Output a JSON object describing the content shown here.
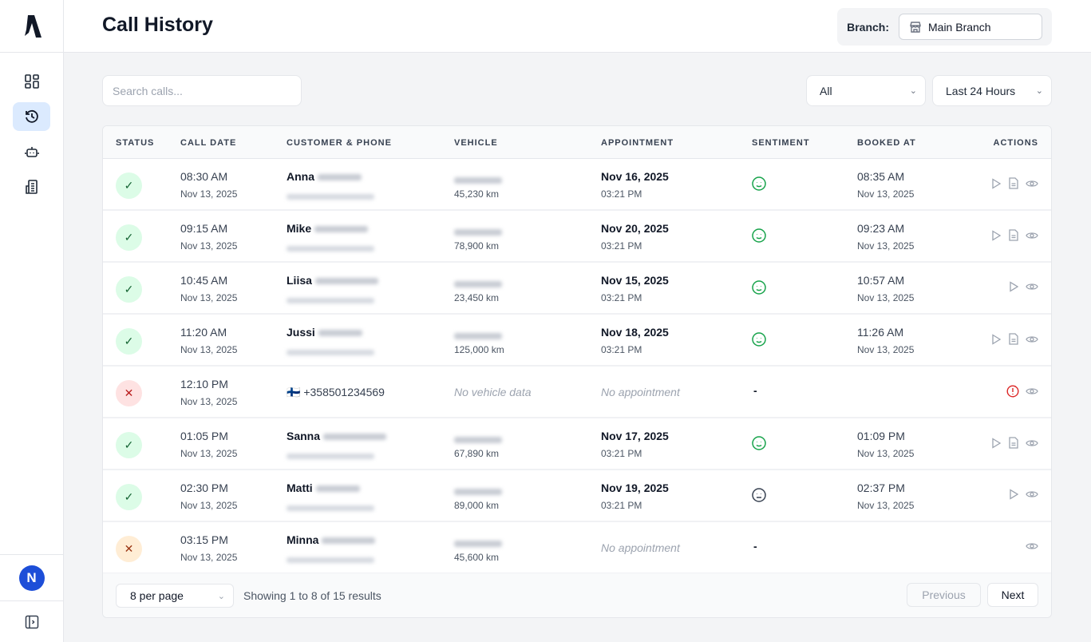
{
  "header": {
    "title": "Call History",
    "branch_label": "Branch:",
    "branch_value": "Main Branch"
  },
  "sidebar": {
    "avatar_initial": "N",
    "items": [
      {
        "name": "dashboard"
      },
      {
        "name": "call-history",
        "active": true
      },
      {
        "name": "assistant"
      },
      {
        "name": "branches"
      }
    ]
  },
  "toolbar": {
    "search_placeholder": "Search calls...",
    "status_filter": "All",
    "time_filter": "Last 24 Hours"
  },
  "table": {
    "columns": [
      "STATUS",
      "CALL DATE",
      "CUSTOMER & PHONE",
      "VEHICLE",
      "APPOINTMENT",
      "SENTIMENT",
      "BOOKED AT",
      "ACTIONS"
    ],
    "rows": [
      {
        "status": "success",
        "time": "08:30 AM",
        "date": "Nov 13, 2025",
        "name": "Anna",
        "vehicle_km": "45,230 km",
        "appt_date": "Nov 16, 2025",
        "appt_time": "03:21 PM",
        "sentiment": "positive",
        "booked_time": "08:35 AM",
        "booked_date": "Nov 13, 2025",
        "actions": [
          "play",
          "transcript",
          "view"
        ]
      },
      {
        "status": "success",
        "time": "09:15 AM",
        "date": "Nov 13, 2025",
        "name": "Mike",
        "vehicle_km": "78,900 km",
        "appt_date": "Nov 20, 2025",
        "appt_time": "03:21 PM",
        "sentiment": "positive",
        "booked_time": "09:23 AM",
        "booked_date": "Nov 13, 2025",
        "actions": [
          "play",
          "transcript",
          "view"
        ]
      },
      {
        "status": "success",
        "time": "10:45 AM",
        "date": "Nov 13, 2025",
        "name": "Liisa",
        "vehicle_km": "23,450 km",
        "appt_date": "Nov 15, 2025",
        "appt_time": "03:21 PM",
        "sentiment": "positive",
        "booked_time": "10:57 AM",
        "booked_date": "Nov 13, 2025",
        "actions": [
          "play",
          "view"
        ]
      },
      {
        "status": "success",
        "time": "11:20 AM",
        "date": "Nov 13, 2025",
        "name": "Jussi",
        "vehicle_km": "125,000 km",
        "appt_date": "Nov 18, 2025",
        "appt_time": "03:21 PM",
        "sentiment": "positive",
        "booked_time": "11:26 AM",
        "booked_date": "Nov 13, 2025",
        "actions": [
          "play",
          "transcript",
          "view"
        ]
      },
      {
        "status": "failed",
        "time": "12:10 PM",
        "date": "Nov 13, 2025",
        "phone": "🇫🇮 +358501234569",
        "vehicle_empty": "No vehicle data",
        "appt_empty": "No appointment",
        "sentiment_text": "-",
        "actions": [
          "error",
          "view"
        ]
      },
      {
        "status": "success",
        "time": "01:05 PM",
        "date": "Nov 13, 2025",
        "name": "Sanna",
        "vehicle_km": "67,890 km",
        "appt_date": "Nov 17, 2025",
        "appt_time": "03:21 PM",
        "sentiment": "positive",
        "booked_time": "01:09 PM",
        "booked_date": "Nov 13, 2025",
        "actions": [
          "play",
          "transcript",
          "view"
        ]
      },
      {
        "status": "success",
        "time": "02:30 PM",
        "date": "Nov 13, 2025",
        "name": "Matti",
        "vehicle_km": "89,000 km",
        "appt_date": "Nov 19, 2025",
        "appt_time": "03:21 PM",
        "sentiment": "neutral",
        "booked_time": "02:37 PM",
        "booked_date": "Nov 13, 2025",
        "actions": [
          "play",
          "view"
        ]
      },
      {
        "status": "incomplete",
        "time": "03:15 PM",
        "date": "Nov 13, 2025",
        "name": "Minna",
        "vehicle_km": "45,600 km",
        "appt_empty": "No appointment",
        "sentiment_text": "-",
        "actions": [
          "view"
        ]
      }
    ]
  },
  "footer": {
    "per_page": "8 per page",
    "showing": "Showing 1 to 8 of 15 results",
    "previous": "Previous",
    "next": "Next"
  },
  "colors": {
    "accent": "#1d4ed8",
    "success": "#16a34a",
    "error": "#dc2626",
    "active_nav": "#dbeafe"
  }
}
